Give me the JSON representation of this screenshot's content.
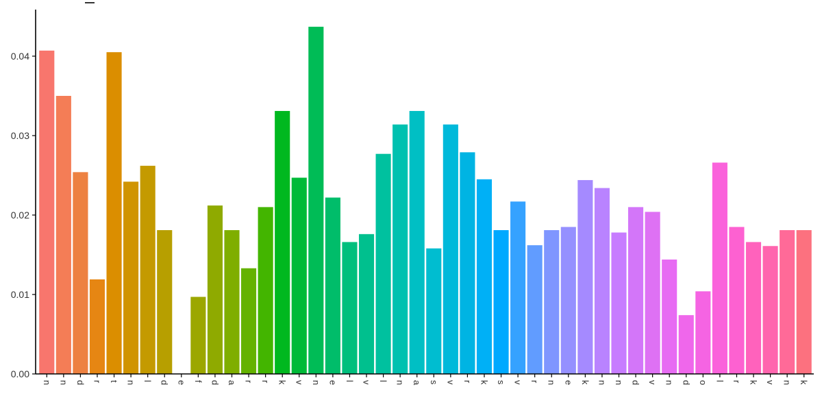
{
  "chart_data": {
    "type": "bar",
    "title": "",
    "xlabel": "",
    "ylabel": "",
    "ylim": [
      0,
      0.046
    ],
    "yticks": [
      0.0,
      0.01,
      0.02,
      0.03,
      0.04
    ],
    "ytick_labels": [
      "0.00",
      "0.01",
      "0.02",
      "0.03",
      "0.04"
    ],
    "grid": false,
    "legend": "none",
    "categories": [
      "n",
      "n",
      "d",
      "r",
      "t",
      "n",
      "l",
      "d",
      "e",
      "f",
      "d",
      "a",
      "r",
      "r",
      "k",
      "v",
      "n",
      "e",
      "l",
      "v",
      "l",
      "n",
      "a",
      "s",
      "v",
      "r",
      "k",
      "s",
      "v",
      "r",
      "n",
      "e",
      "k",
      "n",
      "n",
      "d",
      "v",
      "n",
      "d",
      "o",
      "l",
      "r",
      "k",
      "v",
      "n",
      "k"
    ],
    "values": [
      0.0407,
      0.035,
      0.0254,
      0.0119,
      0.0405,
      0.0242,
      0.0262,
      0.0181,
      0.0,
      0.0097,
      0.0212,
      0.0181,
      0.0133,
      0.021,
      0.0331,
      0.0247,
      0.0437,
      0.0222,
      0.0166,
      0.0176,
      0.0277,
      0.0314,
      0.0331,
      0.0158,
      0.0314,
      0.0279,
      0.0245,
      0.0181,
      0.0217,
      0.0162,
      0.0181,
      0.0185,
      0.0244,
      0.0234,
      0.0178,
      0.021,
      0.0204,
      0.0144,
      0.0074,
      0.0104,
      0.0266,
      0.0185,
      0.0166,
      0.0161,
      0.0181,
      0.0181
    ],
    "colors": [
      "#F8766D",
      "#F47D56",
      "#ED8141",
      "#E68613",
      "#DB8E00",
      "#D09400",
      "#C49A00",
      "#B79F00",
      "#A9A400",
      "#9CA700",
      "#8FAA00",
      "#7FAE00",
      "#64B200",
      "#43B500",
      "#00B81F",
      "#00BA38",
      "#00BC56",
      "#00BD6A",
      "#00BF7D",
      "#00C08E",
      "#00C19F",
      "#00C1B0",
      "#00BFC4",
      "#00BDD0",
      "#00B9DA",
      "#00B4E3",
      "#00B0F6",
      "#00A9FF",
      "#35A2FF",
      "#619CFF",
      "#7F96FF",
      "#9590FF",
      "#A58AFF",
      "#B983FF",
      "#C77CFF",
      "#D376F9",
      "#DE71F4",
      "#E76BF3",
      "#EF67EB",
      "#F564E3",
      "#FA62DB",
      "#FD61D1",
      "#FF62BC",
      "#FF65AE",
      "#FF6A98",
      "#FC717F"
    ]
  }
}
